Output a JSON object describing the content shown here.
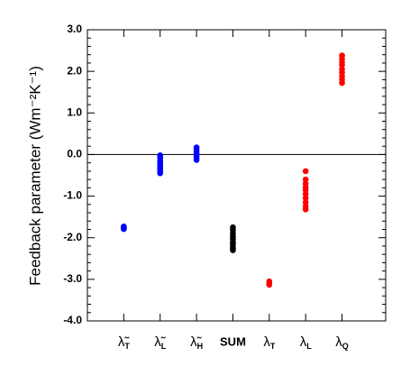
{
  "chart_data": {
    "type": "strip",
    "ylabel": "Feedback parameter (Wm⁻²K⁻¹)",
    "categories": [
      "λ̃T",
      "λ̃L",
      "λ̃H",
      "SUM",
      "λT",
      "λL",
      "λQ"
    ],
    "colors": [
      "#0000ff",
      "#0000ff",
      "#0000ff",
      "#000000",
      "#ff0000",
      "#ff0000",
      "#ff0000"
    ],
    "points": [
      [
        -1.73,
        -1.75,
        -1.77,
        -1.79
      ],
      [
        -0.02,
        -0.08,
        -0.15,
        -0.2,
        -0.25,
        -0.3,
        -0.35,
        -0.4,
        -0.45
      ],
      [
        0.17,
        0.12,
        0.07,
        0.02,
        -0.03,
        -0.08,
        -0.13
      ],
      [
        -1.75,
        -1.82,
        -1.9,
        -1.97,
        -2.03,
        -2.1,
        -2.15,
        -2.2,
        -2.25,
        -2.3
      ],
      [
        -3.05,
        -3.09,
        -3.13
      ],
      [
        -0.4,
        -0.6,
        -0.7,
        -0.78,
        -0.85,
        -0.95,
        -1.05,
        -1.15,
        -1.25,
        -1.32
      ],
      [
        2.38,
        2.3,
        2.22,
        2.15,
        2.05,
        1.97,
        1.88,
        1.8,
        1.72
      ]
    ],
    "ylim": [
      -4,
      3
    ],
    "yticks": [
      {
        "value": -4,
        "label": "-4.0"
      },
      {
        "value": -3,
        "label": "-3.0"
      },
      {
        "value": -2,
        "label": "-2.0"
      },
      {
        "value": -1,
        "label": "-1.0"
      },
      {
        "value": 0,
        "label": "0.0"
      },
      {
        "value": 1,
        "label": "1.0"
      },
      {
        "value": 2,
        "label": "2.0"
      },
      {
        "value": 3,
        "label": "3.0"
      }
    ],
    "hline": 0
  }
}
